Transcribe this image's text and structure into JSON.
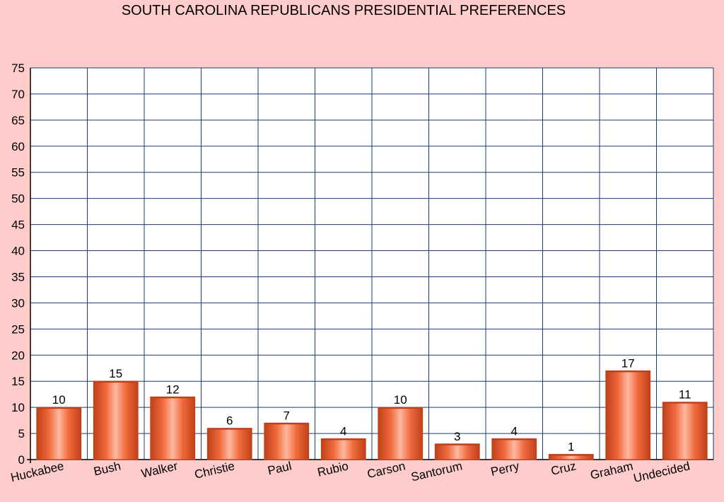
{
  "chart_data": {
    "type": "bar",
    "title": "SOUTH CAROLINA REPUBLICANS PRESIDENTIAL PREFERENCES",
    "xlabel": "",
    "ylabel": "",
    "categories": [
      "Huckabee",
      "Bush",
      "Walker",
      "Christie",
      "Paul",
      "Rubio",
      "Carson",
      "Santorum",
      "Perry",
      "Cruz",
      "Graham",
      "Undecided"
    ],
    "values": [
      10,
      15,
      12,
      6,
      7,
      4,
      10,
      3,
      4,
      1,
      17,
      11
    ],
    "ylim": [
      0,
      75
    ],
    "yticks": [
      0,
      5,
      10,
      15,
      20,
      25,
      30,
      35,
      40,
      45,
      50,
      55,
      60,
      65,
      70,
      75
    ],
    "grid": true,
    "data_labels": true,
    "colors": {
      "background": "#ffcccc",
      "plot_background": "#ffffff",
      "grid": "#1f3a6b",
      "bar_edge": "#c0401a",
      "bar_center": "#ffb8a0",
      "bar_mid": "#f06a3c"
    }
  }
}
